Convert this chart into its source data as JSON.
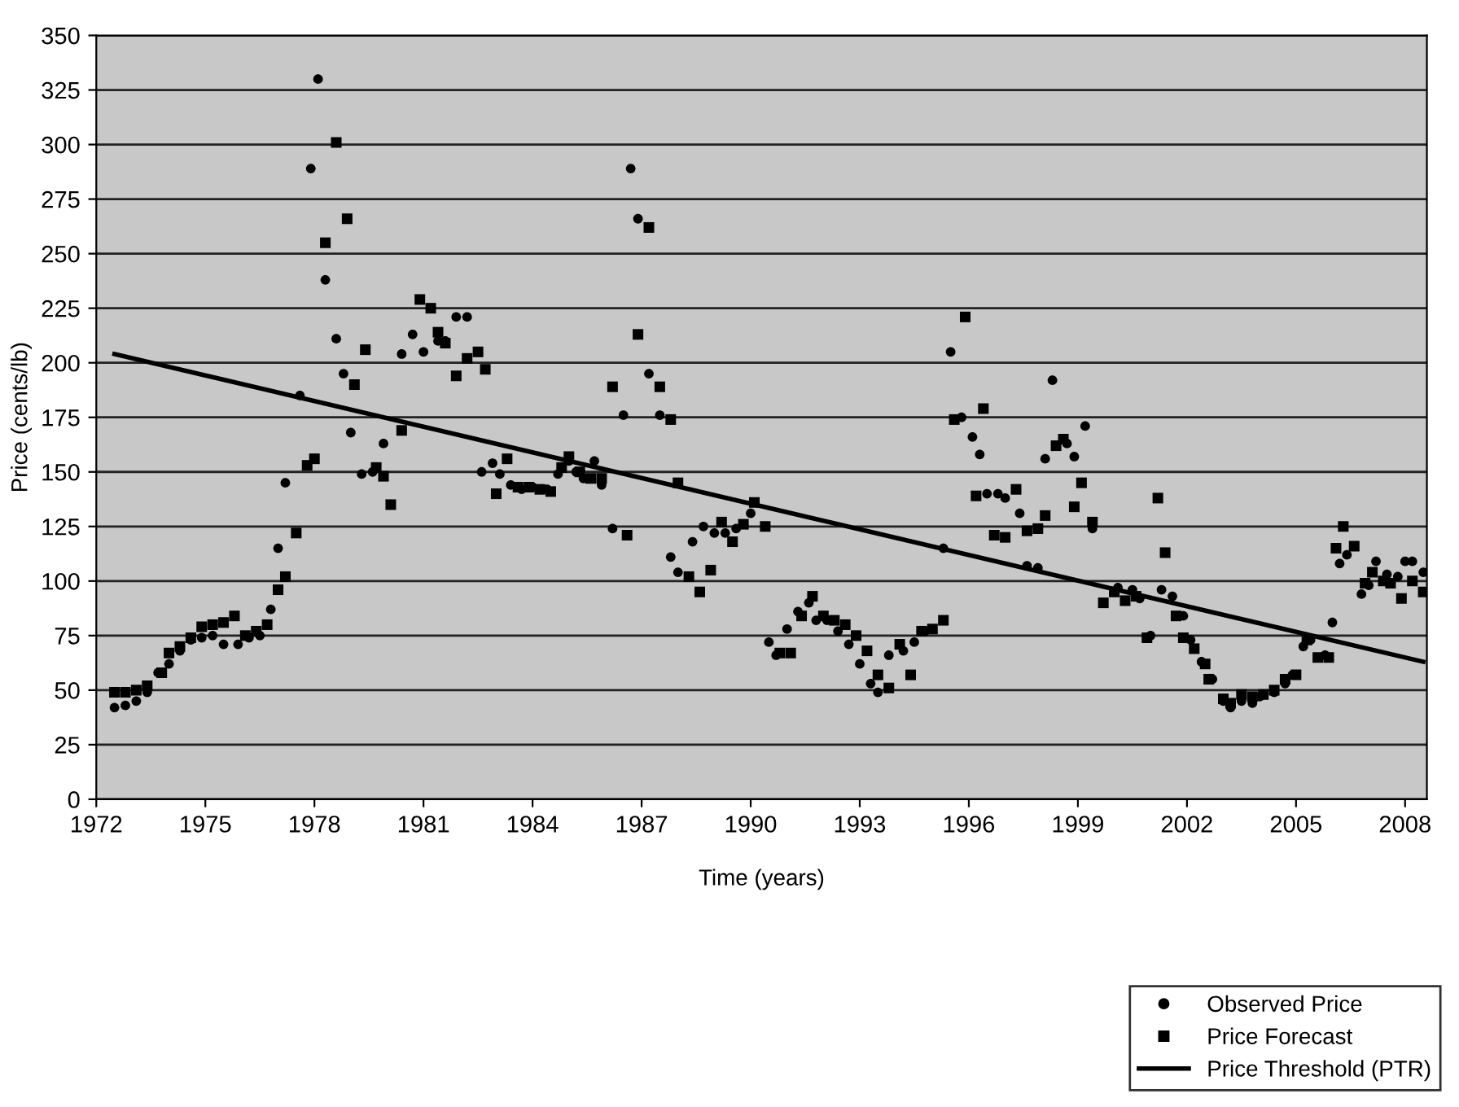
{
  "chart_data": {
    "type": "scatter",
    "xlabel": "Time (years)",
    "ylabel": "Price (cents/lb)",
    "xlim": [
      1972,
      2008.6
    ],
    "xticks": [
      1972,
      1975,
      1978,
      1981,
      1984,
      1987,
      1990,
      1993,
      1996,
      1999,
      2002,
      2005,
      2008
    ],
    "ylim": [
      0,
      350
    ],
    "yticks": [
      0,
      25,
      50,
      75,
      100,
      125,
      150,
      175,
      200,
      225,
      250,
      275,
      300,
      325,
      350
    ],
    "grid": "y",
    "legend": "bottom right",
    "series": [
      {
        "name": "Observed Price",
        "marker": "circle",
        "color": "#000000",
        "x": [
          1972.5,
          1972.8,
          1973.1,
          1973.4,
          1973.7,
          1974.0,
          1974.3,
          1974.6,
          1974.9,
          1975.2,
          1975.5,
          1975.9,
          1976.2,
          1976.5,
          1976.8,
          1977.0,
          1977.2,
          1977.6,
          1977.9,
          1978.1,
          1978.3,
          1978.6,
          1978.8,
          1979.0,
          1979.3,
          1979.6,
          1979.9,
          1980.4,
          1980.7,
          1981.0,
          1981.4,
          1981.6,
          1981.9,
          1982.2,
          1982.6,
          1982.9,
          1983.1,
          1983.4,
          1983.7,
          1984.0,
          1984.4,
          1984.7,
          1985.0,
          1985.2,
          1985.4,
          1985.7,
          1985.9,
          1986.2,
          1986.5,
          1986.7,
          1986.9,
          1987.2,
          1987.5,
          1987.8,
          1988.0,
          1988.4,
          1988.7,
          1989.0,
          1989.3,
          1989.6,
          1990.0,
          1990.5,
          1990.7,
          1991.0,
          1991.3,
          1991.6,
          1991.8,
          1992.1,
          1992.4,
          1992.7,
          1993.0,
          1993.3,
          1993.5,
          1993.8,
          1994.2,
          1994.5,
          1994.8,
          1995.3,
          1995.5,
          1995.8,
          1996.1,
          1996.3,
          1996.5,
          1996.8,
          1997.0,
          1997.4,
          1997.6,
          1997.9,
          1998.1,
          1998.3,
          1998.7,
          1998.9,
          1999.2,
          1999.4,
          2000.1,
          2000.5,
          2000.7,
          2001.0,
          2001.3,
          2001.6,
          2001.9,
          2002.1,
          2002.4,
          2002.7,
          2003.0,
          2003.2,
          2003.5,
          2003.8,
          2004.0,
          2004.4,
          2004.7,
          2004.9,
          2005.2,
          2005.4,
          2005.8,
          2006.0,
          2006.2,
          2006.4,
          2006.8,
          2007.0,
          2007.2,
          2007.5,
          2007.8,
          2008.0,
          2008.2,
          2008.5
        ],
        "values": [
          42,
          43,
          45,
          49,
          58,
          62,
          68,
          73,
          74,
          75,
          71,
          71,
          74,
          75,
          87,
          115,
          145,
          185,
          289,
          330,
          238,
          211,
          195,
          168,
          149,
          150,
          163,
          204,
          213,
          205,
          210,
          210,
          221,
          221,
          150,
          154,
          149,
          144,
          142,
          143,
          142,
          149,
          155,
          150,
          147,
          155,
          144,
          124,
          176,
          289,
          266,
          195,
          176,
          111,
          104,
          118,
          125,
          122,
          122,
          124,
          131,
          72,
          66,
          78,
          86,
          90,
          82,
          82,
          77,
          71,
          62,
          53,
          49,
          66,
          68,
          72,
          77,
          115,
          205,
          175,
          166,
          158,
          140,
          140,
          138,
          131,
          107,
          106,
          156,
          192,
          163,
          157,
          171,
          124,
          97,
          96,
          92,
          75,
          96,
          93,
          84,
          73,
          63,
          55,
          45,
          42,
          45,
          44,
          47,
          49,
          53,
          57,
          70,
          73,
          66,
          81,
          108,
          112,
          94,
          98,
          109,
          103,
          102,
          109,
          109,
          104
        ]
      },
      {
        "name": "Price Forecast",
        "marker": "square",
        "color": "#000000",
        "x": [
          1972.5,
          1972.8,
          1973.1,
          1973.4,
          1973.8,
          1974.0,
          1974.3,
          1974.6,
          1974.9,
          1975.2,
          1975.5,
          1975.8,
          1976.1,
          1976.4,
          1976.7,
          1977.0,
          1977.2,
          1977.5,
          1977.8,
          1978.0,
          1978.3,
          1978.6,
          1978.9,
          1979.1,
          1979.4,
          1979.7,
          1979.9,
          1980.1,
          1980.4,
          1980.9,
          1981.2,
          1981.4,
          1981.6,
          1981.9,
          1982.2,
          1982.5,
          1982.7,
          1983.0,
          1983.3,
          1983.6,
          1983.9,
          1984.2,
          1984.5,
          1984.8,
          1985.0,
          1985.3,
          1985.6,
          1985.9,
          1986.2,
          1986.6,
          1986.9,
          1987.2,
          1987.5,
          1987.8,
          1988.0,
          1988.3,
          1988.6,
          1988.9,
          1989.2,
          1989.5,
          1989.8,
          1990.1,
          1990.4,
          1990.8,
          1991.1,
          1991.4,
          1991.7,
          1992.0,
          1992.3,
          1992.6,
          1992.9,
          1993.2,
          1993.5,
          1993.8,
          1994.1,
          1994.4,
          1994.7,
          1995.0,
          1995.3,
          1995.6,
          1995.9,
          1996.2,
          1996.4,
          1996.7,
          1997.0,
          1997.3,
          1997.6,
          1997.9,
          1998.1,
          1998.4,
          1998.6,
          1998.9,
          1999.1,
          1999.4,
          1999.7,
          2000.0,
          2000.3,
          2000.6,
          2000.9,
          2001.2,
          2001.4,
          2001.7,
          2001.9,
          2002.2,
          2002.5,
          2002.6,
          2003.0,
          2003.2,
          2003.5,
          2003.8,
          2004.1,
          2004.4,
          2004.7,
          2005.0,
          2005.3,
          2005.6,
          2005.9,
          2006.1,
          2006.3,
          2006.6,
          2006.9,
          2007.1,
          2007.4,
          2007.6,
          2007.9,
          2008.2,
          2008.5
        ],
        "values": [
          49,
          49,
          50,
          52,
          58,
          67,
          70,
          74,
          79,
          80,
          81,
          84,
          75,
          77,
          80,
          96,
          102,
          122,
          153,
          156,
          255,
          301,
          266,
          190,
          206,
          152,
          148,
          135,
          169,
          229,
          225,
          214,
          209,
          194,
          202,
          205,
          197,
          140,
          156,
          143,
          143,
          142,
          141,
          152,
          157,
          150,
          147,
          147,
          189,
          121,
          213,
          262,
          189,
          174,
          145,
          102,
          95,
          105,
          127,
          118,
          126,
          136,
          125,
          67,
          67,
          84,
          93,
          84,
          82,
          80,
          75,
          68,
          57,
          51,
          71,
          57,
          77,
          78,
          82,
          174,
          221,
          139,
          179,
          121,
          120,
          142,
          123,
          124,
          130,
          162,
          165,
          134,
          145,
          127,
          90,
          95,
          91,
          93,
          74,
          138,
          113,
          84,
          74,
          69,
          62,
          55,
          46,
          44,
          48,
          47,
          48,
          50,
          55,
          57,
          73,
          65,
          65,
          115,
          125,
          116,
          99,
          104,
          100,
          99,
          92,
          100,
          95
        ]
      },
      {
        "name": "Price Threshold (PTR)",
        "type": "line",
        "marker": "none",
        "line_style": "solid",
        "color": "#000000",
        "x": [
          1972.5,
          2008.5
        ],
        "values": [
          204,
          63
        ]
      }
    ]
  }
}
